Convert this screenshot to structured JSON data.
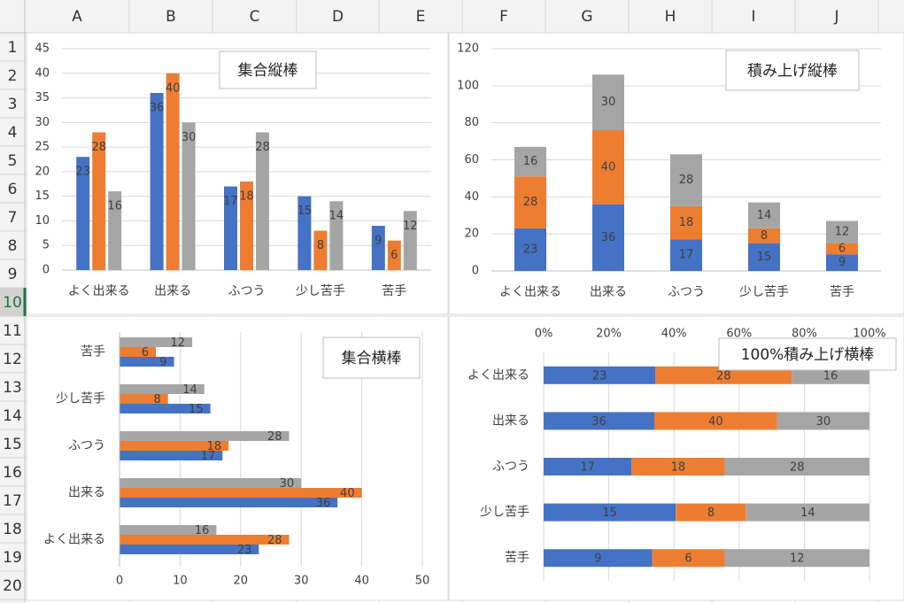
{
  "spreadsheet": {
    "columns": [
      "A",
      "B",
      "C",
      "D",
      "E",
      "F",
      "G",
      "H",
      "I",
      "J"
    ],
    "rows": [
      1,
      2,
      3,
      4,
      5,
      6,
      7,
      8,
      9,
      10,
      11,
      12,
      13,
      14,
      15,
      16,
      17,
      18,
      19,
      20
    ]
  },
  "chart_data": [
    {
      "type": "bar",
      "title": "集合縦棒",
      "categories": [
        "よく出来る",
        "出来る",
        "ふつう",
        "少し苦手",
        "苦手"
      ],
      "series": [
        {
          "color": "#4472c4",
          "values": [
            23,
            36,
            17,
            15,
            9
          ]
        },
        {
          "color": "#ed7d31",
          "values": [
            28,
            40,
            18,
            8,
            6
          ]
        },
        {
          "color": "#a5a5a5",
          "values": [
            16,
            30,
            28,
            14,
            12
          ]
        }
      ],
      "ylim": [
        0,
        45
      ],
      "yticks": [
        0,
        5,
        10,
        15,
        20,
        25,
        30,
        35,
        40,
        45
      ],
      "grid": true
    },
    {
      "type": "stacked_bar",
      "title": "積み上げ縦棒",
      "categories": [
        "よく出来る",
        "出来る",
        "ふつう",
        "少し苦手",
        "苦手"
      ],
      "series": [
        {
          "color": "#4472c4",
          "values": [
            23,
            36,
            17,
            15,
            9
          ]
        },
        {
          "color": "#ed7d31",
          "values": [
            28,
            40,
            18,
            8,
            6
          ]
        },
        {
          "color": "#a5a5a5",
          "values": [
            16,
            30,
            28,
            14,
            12
          ]
        }
      ],
      "ylim": [
        0,
        120
      ],
      "yticks": [
        0,
        20,
        40,
        60,
        80,
        100,
        120
      ],
      "grid": true
    },
    {
      "type": "barh",
      "title": "集合横棒",
      "categories": [
        "よく出来る",
        "出来る",
        "ふつう",
        "少し苦手",
        "苦手"
      ],
      "series": [
        {
          "color": "#4472c4",
          "values": [
            23,
            36,
            17,
            15,
            9
          ]
        },
        {
          "color": "#ed7d31",
          "values": [
            28,
            40,
            18,
            8,
            6
          ]
        },
        {
          "color": "#a5a5a5",
          "values": [
            16,
            30,
            28,
            14,
            12
          ]
        }
      ],
      "xlim": [
        0,
        50
      ],
      "xticks": [
        0,
        10,
        20,
        30,
        40,
        50
      ],
      "grid": true
    },
    {
      "type": "percent_barh",
      "title": "100%積み上げ横棒",
      "categories": [
        "よく出来る",
        "出来る",
        "ふつう",
        "少し苦手",
        "苦手"
      ],
      "series": [
        {
          "color": "#4472c4",
          "values": [
            23,
            36,
            17,
            15,
            9
          ]
        },
        {
          "color": "#ed7d31",
          "values": [
            28,
            40,
            18,
            8,
            6
          ]
        },
        {
          "color": "#a5a5a5",
          "values": [
            16,
            30,
            28,
            14,
            12
          ]
        }
      ],
      "xlim": [
        0,
        100
      ],
      "xticks": [
        {
          "value": 0,
          "label": "0%"
        },
        {
          "value": 20,
          "label": "20%"
        },
        {
          "value": 40,
          "label": "40%"
        },
        {
          "value": 60,
          "label": "60%"
        },
        {
          "value": 80,
          "label": "80%"
        },
        {
          "value": 100,
          "label": "100%"
        }
      ],
      "grid": true
    }
  ]
}
